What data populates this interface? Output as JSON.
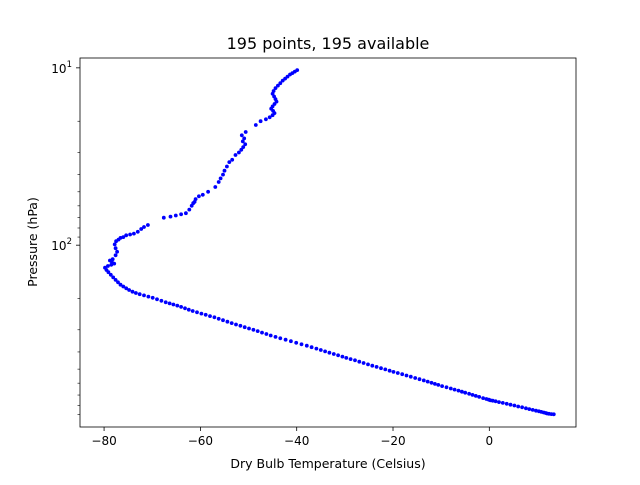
{
  "chart_data": {
    "type": "scatter",
    "title": "195 points, 195 available",
    "xlabel": "Dry Bulb Temperature (Celsius)",
    "ylabel": "Pressure (hPa)",
    "xlim": [
      -85,
      18
    ],
    "ylim": [
      1060,
      8.8
    ],
    "yscale": "log",
    "yaxis_inverted": true,
    "grid": false,
    "legend": "none",
    "marker_color": "#0000ff",
    "x_ticks": [
      {
        "value": -80,
        "label": "−80"
      },
      {
        "value": -60,
        "label": "−60"
      },
      {
        "value": -40,
        "label": "−40"
      },
      {
        "value": -20,
        "label": "−20"
      },
      {
        "value": 0,
        "label": "0"
      }
    ],
    "y_ticks": [
      {
        "value": 10,
        "base": "10",
        "exp": "1"
      },
      {
        "value": 100,
        "base": "10",
        "exp": "2"
      }
    ],
    "y_minor_ticks": [
      20,
      30,
      40,
      50,
      60,
      70,
      80,
      90,
      200,
      300,
      400,
      500,
      600,
      700,
      800,
      900
    ],
    "series": [
      {
        "points": [
          [
            13.4,
            899
          ],
          [
            12.9,
            896
          ],
          [
            12.4,
            893
          ],
          [
            12.0,
            890
          ],
          [
            11.7,
            884
          ],
          [
            11.3,
            878
          ],
          [
            10.8,
            871
          ],
          [
            10.3,
            865
          ],
          [
            9.7,
            858
          ],
          [
            9.0,
            849
          ],
          [
            8.3,
            840
          ],
          [
            7.6,
            831
          ],
          [
            6.8,
            821
          ],
          [
            6.0,
            812
          ],
          [
            5.2,
            802
          ],
          [
            4.4,
            793
          ],
          [
            3.6,
            784
          ],
          [
            2.8,
            775
          ],
          [
            2.0,
            767
          ],
          [
            1.3,
            759
          ],
          [
            0.7,
            753
          ],
          [
            0.2,
            749
          ],
          [
            -0.1,
            744
          ],
          [
            -0.6,
            737
          ],
          [
            -1.3,
            728
          ],
          [
            -2.1,
            717
          ],
          [
            -2.8,
            708
          ],
          [
            -3.5,
            699
          ],
          [
            -4.2,
            689
          ],
          [
            -5.0,
            679
          ],
          [
            -5.7,
            670
          ],
          [
            -6.4,
            661
          ],
          [
            -7.2,
            652
          ],
          [
            -8.0,
            643
          ],
          [
            -8.9,
            633
          ],
          [
            -9.8,
            623
          ],
          [
            -10.6,
            614
          ],
          [
            -11.3,
            606
          ],
          [
            -12.0,
            597
          ],
          [
            -12.8,
            588
          ],
          [
            -13.6,
            579
          ],
          [
            -14.5,
            570
          ],
          [
            -15.4,
            561
          ],
          [
            -16.3,
            552
          ],
          [
            -17.2,
            543
          ],
          [
            -18.1,
            534
          ],
          [
            -19.0,
            526
          ],
          [
            -19.9,
            518
          ],
          [
            -20.7,
            510
          ],
          [
            -21.6,
            502
          ],
          [
            -22.5,
            494
          ],
          [
            -23.4,
            486
          ],
          [
            -24.3,
            478
          ],
          [
            -25.2,
            470
          ],
          [
            -26.1,
            462
          ],
          [
            -27.0,
            454
          ],
          [
            -27.9,
            446
          ],
          [
            -28.8,
            439
          ],
          [
            -29.7,
            432
          ],
          [
            -30.5,
            425
          ],
          [
            -31.4,
            418
          ],
          [
            -32.3,
            411
          ],
          [
            -33.2,
            404
          ],
          [
            -34.1,
            397
          ],
          [
            -35.0,
            390
          ],
          [
            -35.9,
            383
          ],
          [
            -36.9,
            376
          ],
          [
            -37.9,
            369
          ],
          [
            -39.0,
            362
          ],
          [
            -40.1,
            355
          ],
          [
            -41.2,
            348
          ],
          [
            -42.3,
            341
          ],
          [
            -43.4,
            335
          ],
          [
            -44.4,
            329
          ],
          [
            -45.4,
            323
          ],
          [
            -46.3,
            317
          ],
          [
            -47.2,
            311
          ],
          [
            -48.1,
            305
          ],
          [
            -49.0,
            300
          ],
          [
            -49.9,
            295
          ],
          [
            -50.8,
            290
          ],
          [
            -51.7,
            285
          ],
          [
            -52.6,
            280
          ],
          [
            -53.5,
            275
          ],
          [
            -54.4,
            270
          ],
          [
            -55.3,
            265
          ],
          [
            -56.2,
            260
          ],
          [
            -57.1,
            255
          ],
          [
            -58.0,
            251
          ],
          [
            -58.9,
            247
          ],
          [
            -59.8,
            243
          ],
          [
            -60.7,
            239
          ],
          [
            -61.6,
            235
          ],
          [
            -62.4,
            231
          ],
          [
            -63.2,
            227
          ],
          [
            -64.0,
            223
          ],
          [
            -64.8,
            219
          ],
          [
            -65.6,
            216
          ],
          [
            -66.4,
            213
          ],
          [
            -67.2,
            210
          ],
          [
            -68.1,
            206
          ],
          [
            -69.0,
            202
          ],
          [
            -69.9,
            198
          ],
          [
            -70.8,
            195
          ],
          [
            -71.7,
            192
          ],
          [
            -72.6,
            189
          ],
          [
            -73.4,
            186
          ],
          [
            -74.1,
            183
          ],
          [
            -74.8,
            179
          ],
          [
            -75.4,
            175
          ],
          [
            -76.0,
            171
          ],
          [
            -76.6,
            167
          ],
          [
            -77.1,
            162
          ],
          [
            -77.6,
            157
          ],
          [
            -78.1,
            152
          ],
          [
            -78.6,
            147
          ],
          [
            -79.1,
            142
          ],
          [
            -79.5,
            138
          ],
          [
            -79.8,
            134
          ],
          [
            -79.2,
            131
          ],
          [
            -78.5,
            129
          ],
          [
            -77.9,
            127
          ],
          [
            -78.4,
            124
          ],
          [
            -78.8,
            122
          ],
          [
            -78.2,
            120
          ],
          [
            -77.6,
            114
          ],
          [
            -77.3,
            109
          ],
          [
            -77.6,
            104
          ],
          [
            -77.8,
            99
          ],
          [
            -77.5,
            95
          ],
          [
            -77.0,
            93
          ],
          [
            -76.6,
            91
          ],
          [
            -76.0,
            90
          ],
          [
            -75.4,
            88
          ],
          [
            -74.6,
            87
          ],
          [
            -73.8,
            86
          ],
          [
            -73.0,
            84
          ],
          [
            -72.3,
            81
          ],
          [
            -71.7,
            79
          ],
          [
            -70.9,
            77
          ],
          [
            -67.6,
            70
          ],
          [
            -66.2,
            69
          ],
          [
            -65.1,
            68
          ],
          [
            -64.0,
            67
          ],
          [
            -63.0,
            66
          ],
          [
            -62.3,
            63
          ],
          [
            -61.8,
            60
          ],
          [
            -61.5,
            58
          ],
          [
            -61.2,
            57
          ],
          [
            -61.0,
            55
          ],
          [
            -60.3,
            53
          ],
          [
            -59.5,
            52
          ],
          [
            -58.4,
            50
          ],
          [
            -56.9,
            47
          ],
          [
            -56.2,
            44
          ],
          [
            -55.8,
            42
          ],
          [
            -55.3,
            40
          ],
          [
            -55.0,
            38
          ],
          [
            -54.5,
            36
          ],
          [
            -54.0,
            34
          ],
          [
            -53.4,
            33
          ],
          [
            -52.7,
            31
          ],
          [
            -52.0,
            30
          ],
          [
            -51.5,
            29
          ],
          [
            -51.1,
            28
          ],
          [
            -50.7,
            27
          ],
          [
            -51.2,
            26
          ],
          [
            -50.9,
            25
          ],
          [
            -51.4,
            24
          ],
          [
            -50.6,
            23
          ],
          [
            -48.5,
            21
          ],
          [
            -47.5,
            20
          ],
          [
            -46.4,
            19.5
          ],
          [
            -45.6,
            19
          ],
          [
            -45.0,
            18.5
          ],
          [
            -44.6,
            18
          ],
          [
            -44.9,
            17.5
          ],
          [
            -45.3,
            17
          ],
          [
            -45.0,
            16.5
          ],
          [
            -44.6,
            16
          ],
          [
            -44.2,
            15.5
          ],
          [
            -44.4,
            15
          ],
          [
            -44.7,
            14.5
          ],
          [
            -45.0,
            14
          ],
          [
            -44.8,
            13.5
          ],
          [
            -44.4,
            13
          ],
          [
            -43.9,
            12.6
          ],
          [
            -43.4,
            12.2
          ],
          [
            -42.9,
            11.8
          ],
          [
            -42.4,
            11.5
          ],
          [
            -41.9,
            11.2
          ],
          [
            -41.4,
            10.9
          ],
          [
            -40.9,
            10.7
          ],
          [
            -40.4,
            10.5
          ],
          [
            -39.9,
            10.3
          ]
        ]
      }
    ]
  }
}
